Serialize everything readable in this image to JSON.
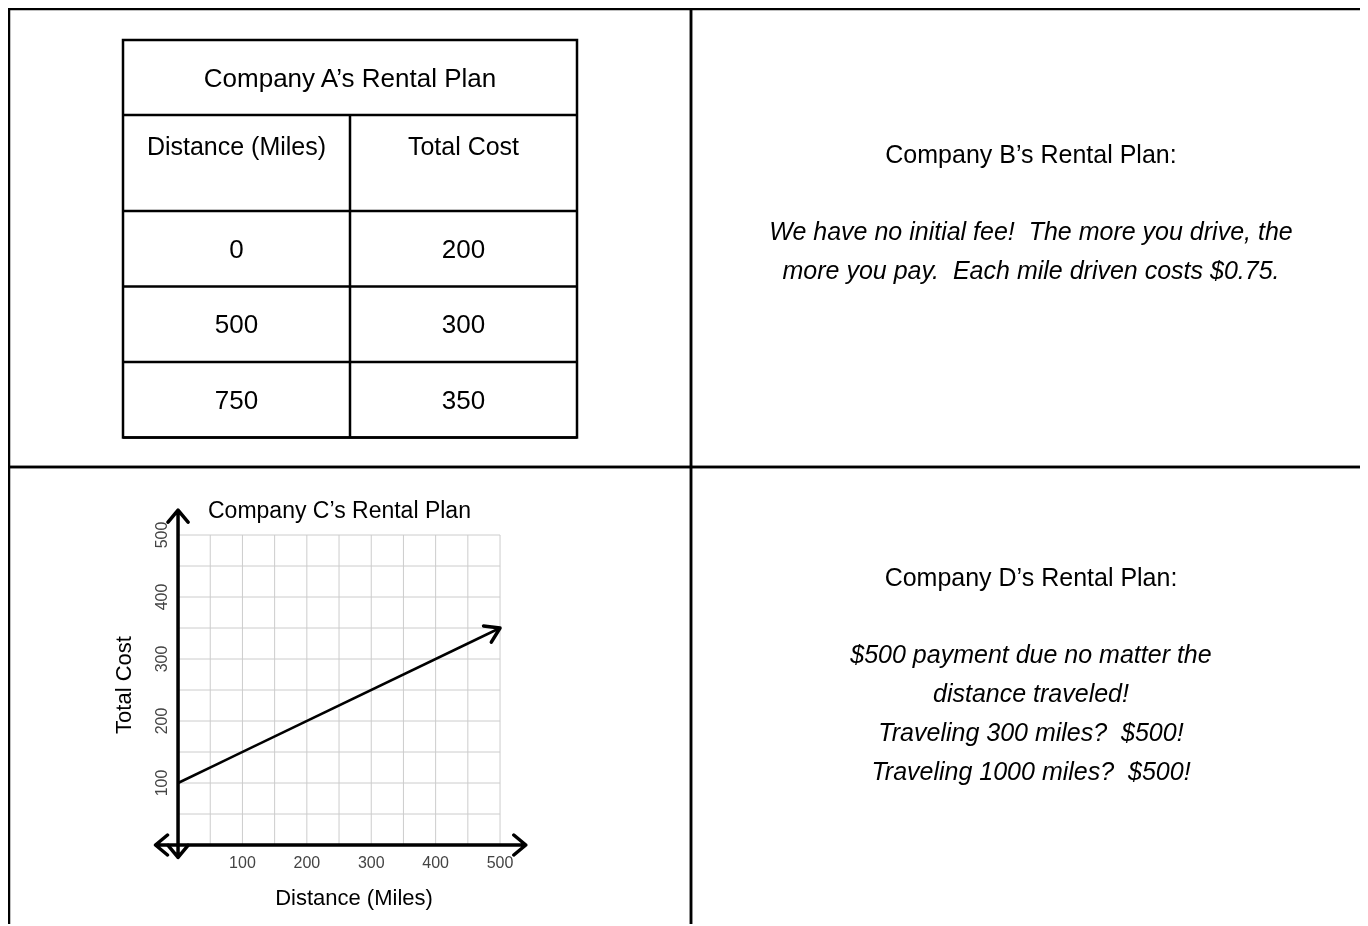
{
  "chart_data": [
    {
      "type": "other",
      "title": "Company A’s Rental Plan",
      "categories": [
        "Distance (Miles)",
        "Total Cost"
      ],
      "annotations": [
        "0",
        "200",
        "500",
        "300",
        "750",
        "350"
      ]
    },
    {
      "type": "other",
      "title": "Company B’s Rental Plan:",
      "annotations": [
        "We have no initial fee!  The more you drive, the",
        "more you pay.  Each mile driven costs $0.75."
      ]
    },
    {
      "type": "line",
      "title": "Company C’s Rental Plan",
      "xlabel": "Distance (Miles)",
      "ylabel": "Total Cost",
      "x": [
        0,
        500
      ],
      "values": [
        100,
        350
      ],
      "color": "#000000",
      "xlim": [
        -35,
        540
      ],
      "ylim": [
        -20,
        540
      ],
      "xticks": [
        {
          "value": 50,
          "label": null
        },
        100,
        {
          "value": 150,
          "label": null
        },
        200,
        {
          "value": 250,
          "label": null
        },
        300,
        {
          "value": 350,
          "label": null
        },
        400,
        {
          "value": 450,
          "label": null
        },
        500
      ],
      "yticks": [
        {
          "value": 50,
          "label": null
        },
        100,
        {
          "value": 150,
          "label": null
        },
        200,
        {
          "value": 250,
          "label": null
        },
        300,
        {
          "value": 350,
          "label": null
        },
        400,
        {
          "value": 450,
          "label": null
        },
        500
      ],
      "grid": true,
      "marker": "none",
      "line_style": "solid"
    },
    {
      "type": "other",
      "title": "Company D’s Rental Plan:",
      "annotations": [
        "$500 payment due no matter the",
        "distance traveled!",
        "Traveling 300 miles?  $500!",
        "Traveling 1000 miles?  $500!"
      ]
    }
  ]
}
